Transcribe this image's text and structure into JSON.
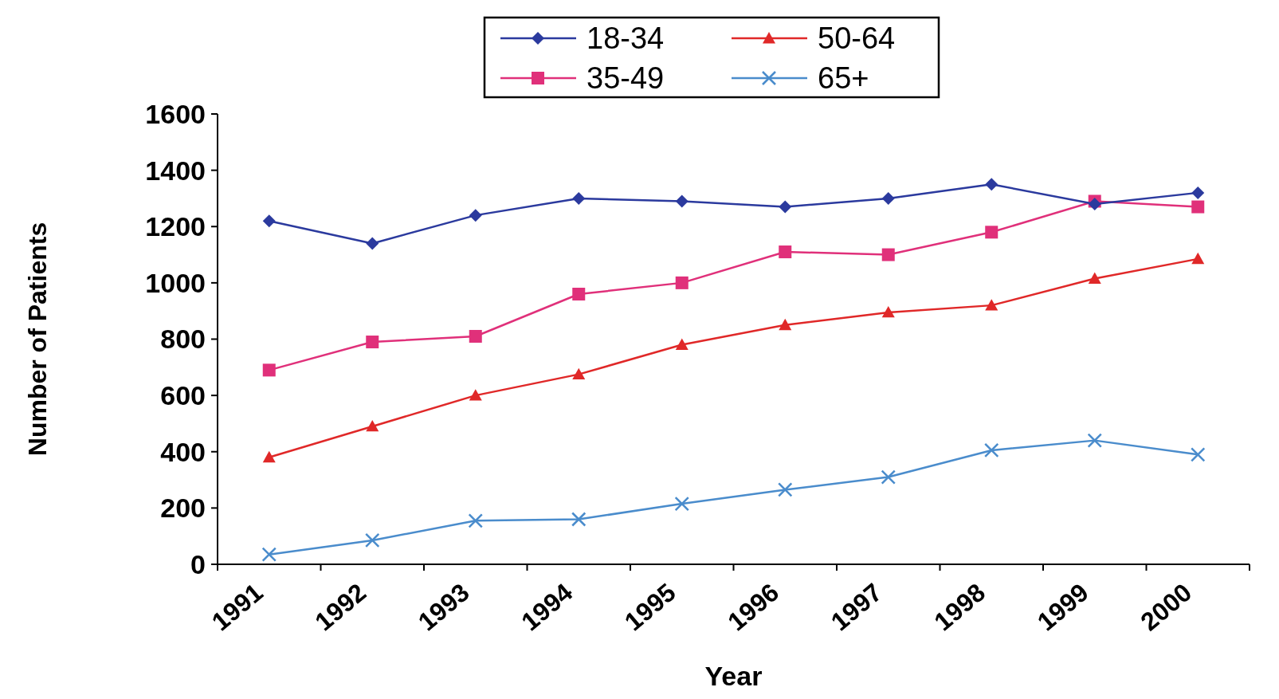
{
  "chart_data": {
    "type": "line",
    "xlabel": "Year",
    "ylabel": "Number of Patients",
    "categories": [
      "1991",
      "1992",
      "1993",
      "1994",
      "1995",
      "1996",
      "1997",
      "1998",
      "1999",
      "2000"
    ],
    "ylim": [
      0,
      1600
    ],
    "yticks": [
      0,
      200,
      400,
      600,
      800,
      1000,
      1200,
      1400,
      1600
    ],
    "grid": false,
    "legend": "top",
    "series": [
      {
        "name": "18-34",
        "color": "#2b3a9e",
        "marker": "diamond",
        "values": [
          1220,
          1140,
          1240,
          1300,
          1290,
          1270,
          1300,
          1350,
          1280,
          1320
        ]
      },
      {
        "name": "50-64",
        "color": "#e02828",
        "marker": "triangle",
        "values": [
          380,
          490,
          600,
          675,
          780,
          850,
          895,
          920,
          1015,
          1085
        ]
      },
      {
        "name": "35-49",
        "color": "#e0307a",
        "marker": "square",
        "values": [
          690,
          790,
          810,
          960,
          1000,
          1110,
          1100,
          1180,
          1290,
          1270
        ]
      },
      {
        "name": "65+",
        "color": "#4a8ccc",
        "marker": "cross",
        "values": [
          35,
          85,
          155,
          160,
          215,
          265,
          310,
          405,
          440,
          390
        ]
      }
    ]
  }
}
